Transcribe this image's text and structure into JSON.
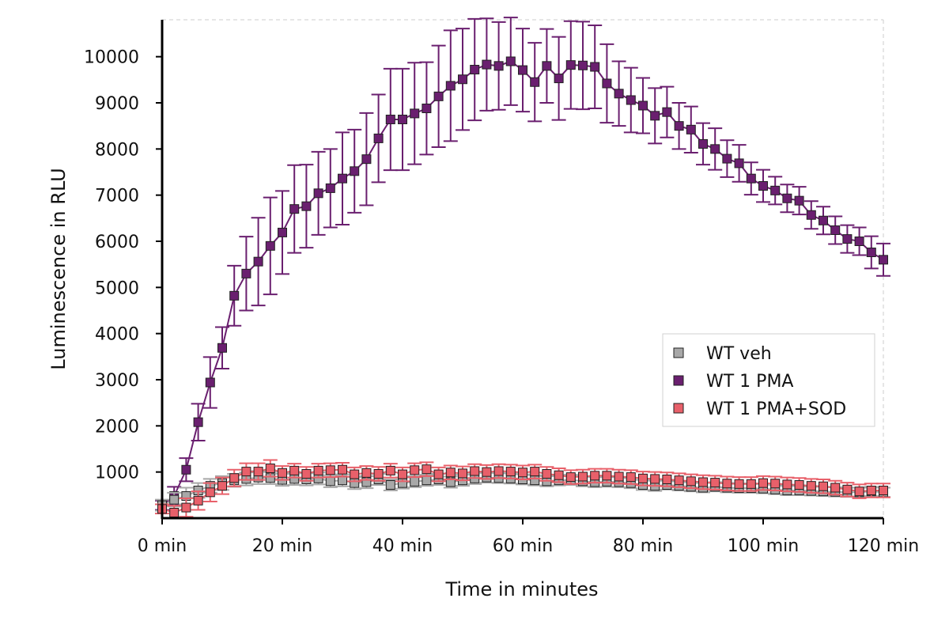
{
  "chart_data": {
    "type": "line",
    "title": "",
    "xlabel": "Time in minutes",
    "ylabel": "Luminescence in RLU",
    "xlim": [
      0,
      120
    ],
    "ylim": [
      0,
      10800
    ],
    "x_ticks": [
      0,
      20,
      40,
      60,
      80,
      100,
      120
    ],
    "x_tick_labels": [
      "0 min",
      "20 min",
      "40 min",
      "60 min",
      "80 min",
      "100 min",
      "120 min"
    ],
    "y_ticks": [
      1000,
      2000,
      3000,
      4000,
      5000,
      6000,
      7000,
      8000,
      9000,
      10000
    ],
    "y_tick_labels": [
      "1000",
      "2000",
      "3000",
      "4000",
      "5000",
      "6000",
      "7000",
      "8000",
      "9000",
      "10000"
    ],
    "grid": false,
    "legend_position": "lower-right",
    "marker": "square",
    "x": [
      0,
      2,
      4,
      6,
      8,
      10,
      12,
      14,
      16,
      18,
      20,
      22,
      24,
      26,
      28,
      30,
      32,
      34,
      36,
      38,
      40,
      42,
      44,
      46,
      48,
      50,
      52,
      54,
      56,
      58,
      60,
      62,
      64,
      66,
      68,
      70,
      72,
      74,
      76,
      78,
      80,
      82,
      84,
      86,
      88,
      90,
      92,
      94,
      96,
      98,
      100,
      102,
      104,
      106,
      108,
      110,
      112,
      114,
      116,
      118,
      120
    ],
    "series": [
      {
        "name": "WT veh",
        "color": "#a8a8a8",
        "values": [
          280,
          400,
          480,
          600,
          700,
          760,
          820,
          850,
          880,
          870,
          830,
          850,
          840,
          860,
          800,
          820,
          760,
          780,
          840,
          720,
          760,
          790,
          820,
          840,
          780,
          820,
          860,
          880,
          870,
          860,
          840,
          820,
          800,
          820,
          830,
          800,
          780,
          790,
          780,
          760,
          720,
          700,
          720,
          700,
          680,
          660,
          680,
          660,
          650,
          650,
          640,
          620,
          600,
          600,
          590,
          580,
          570,
          560,
          560,
          580,
          560
        ],
        "error": [
          120,
          150,
          180,
          160,
          150,
          150,
          140,
          140,
          140,
          130,
          130,
          130,
          130,
          130,
          130,
          130,
          130,
          130,
          120,
          120,
          120,
          120,
          120,
          120,
          120,
          120,
          120,
          110,
          110,
          110,
          110,
          110,
          110,
          110,
          110,
          110,
          110,
          110,
          110,
          110,
          110,
          110,
          100,
          100,
          100,
          100,
          100,
          100,
          100,
          100,
          100,
          100,
          100,
          100,
          100,
          100,
          100,
          100,
          100,
          100,
          100
        ]
      },
      {
        "name": "WT 1 PMA",
        "color": "#6a1f6f",
        "values": [
          280,
          480,
          1050,
          2080,
          2940,
          3690,
          4820,
          5300,
          5560,
          5900,
          6190,
          6700,
          6760,
          7040,
          7150,
          7360,
          7520,
          7780,
          8230,
          8640,
          8640,
          8770,
          8880,
          9140,
          9370,
          9510,
          9720,
          9830,
          9800,
          9900,
          9710,
          9450,
          9800,
          9530,
          9820,
          9810,
          9780,
          9420,
          9200,
          9060,
          8940,
          8720,
          8800,
          8500,
          8420,
          8110,
          8000,
          7790,
          7690,
          7360,
          7200,
          7100,
          6930,
          6880,
          6570,
          6450,
          6240,
          6050,
          6000,
          5760,
          5600
        ],
        "error": [
          100,
          200,
          250,
          400,
          550,
          450,
          650,
          800,
          950,
          1050,
          900,
          950,
          900,
          900,
          850,
          1000,
          900,
          1000,
          950,
          1100,
          1100,
          1100,
          1000,
          1100,
          1200,
          1100,
          1100,
          1000,
          950,
          950,
          900,
          850,
          800,
          900,
          950,
          950,
          900,
          850,
          700,
          700,
          600,
          600,
          550,
          500,
          500,
          450,
          450,
          400,
          400,
          350,
          350,
          300,
          300,
          300,
          300,
          300,
          300,
          300,
          300,
          350,
          350
        ]
      },
      {
        "name": "WT 1 PMA+SOD",
        "color": "#e8606a",
        "values": [
          200,
          120,
          230,
          380,
          560,
          700,
          870,
          1010,
          1010,
          1080,
          980,
          1030,
          960,
          1030,
          1040,
          1050,
          950,
          980,
          960,
          1030,
          950,
          1040,
          1060,
          950,
          990,
          970,
          1020,
          1000,
          1020,
          1010,
          990,
          1010,
          960,
          930,
          890,
          900,
          920,
          920,
          900,
          890,
          860,
          850,
          840,
          820,
          800,
          780,
          770,
          750,
          740,
          740,
          760,
          750,
          730,
          720,
          700,
          690,
          660,
          620,
          580,
          600,
          600
        ],
        "error": [
          100,
          150,
          200,
          200,
          200,
          180,
          180,
          180,
          180,
          180,
          150,
          150,
          150,
          150,
          150,
          150,
          150,
          150,
          150,
          150,
          150,
          150,
          150,
          150,
          150,
          150,
          150,
          150,
          150,
          150,
          150,
          150,
          150,
          150,
          150,
          150,
          150,
          150,
          150,
          150,
          150,
          150,
          150,
          150,
          150,
          150,
          150,
          150,
          150,
          150,
          150,
          150,
          150,
          150,
          150,
          150,
          150,
          150,
          150,
          150,
          150
        ]
      }
    ]
  }
}
